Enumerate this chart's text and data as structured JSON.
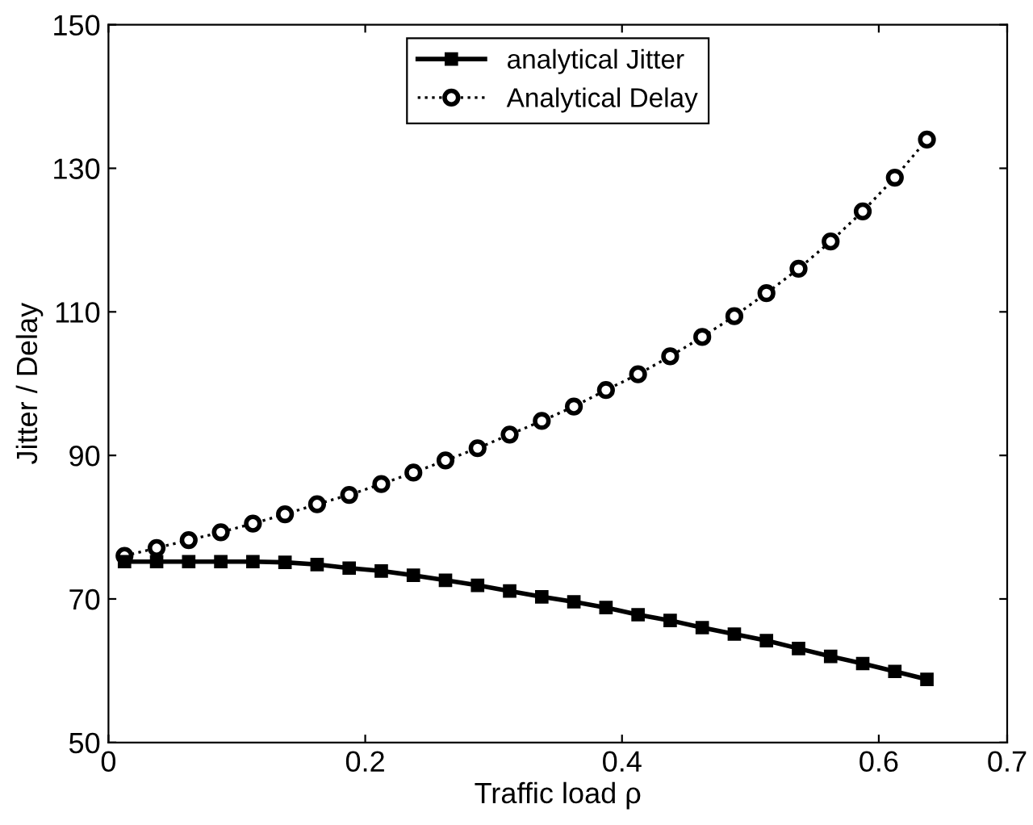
{
  "chart_data": {
    "type": "line",
    "xlabel": "Traffic load ρ",
    "ylabel": "Jitter / Delay",
    "x": [
      0.0125,
      0.0375,
      0.0625,
      0.0875,
      0.1125,
      0.1375,
      0.1625,
      0.1875,
      0.2125,
      0.2375,
      0.2625,
      0.2875,
      0.3125,
      0.3375,
      0.3625,
      0.3875,
      0.4125,
      0.4375,
      0.4625,
      0.4875,
      0.5125,
      0.5375,
      0.5625,
      0.5875,
      0.6125,
      0.6375
    ],
    "series": [
      {
        "name": "analytical Jitter",
        "color": "#000000",
        "marker": "square",
        "line_style": "solid",
        "values": [
          75.2,
          75.2,
          75.2,
          75.2,
          75.2,
          75.1,
          74.8,
          74.3,
          73.9,
          73.3,
          72.6,
          71.9,
          71.1,
          70.3,
          69.6,
          68.8,
          67.8,
          67.0,
          66.0,
          65.1,
          64.2,
          63.1,
          62.0,
          61.0,
          59.9,
          58.8
        ]
      },
      {
        "name": "Analytical Delay",
        "color": "#000000",
        "marker": "circle",
        "line_style": "dotted",
        "values": [
          76.0,
          77.1,
          78.2,
          79.3,
          80.5,
          81.8,
          83.2,
          84.5,
          86.0,
          87.6,
          89.3,
          91.0,
          92.9,
          94.8,
          96.8,
          99.1,
          101.3,
          103.8,
          106.5,
          109.4,
          112.6,
          116.0,
          119.8,
          124.0,
          128.7,
          134.0
        ]
      }
    ],
    "xlim": [
      0,
      0.7
    ],
    "xticks": [
      0,
      0.2,
      0.4,
      0.6,
      0.7
    ],
    "ylim": [
      50,
      150
    ],
    "yticks": [
      50,
      70,
      90,
      110,
      130,
      150
    ],
    "grid": false,
    "legend": "top"
  }
}
